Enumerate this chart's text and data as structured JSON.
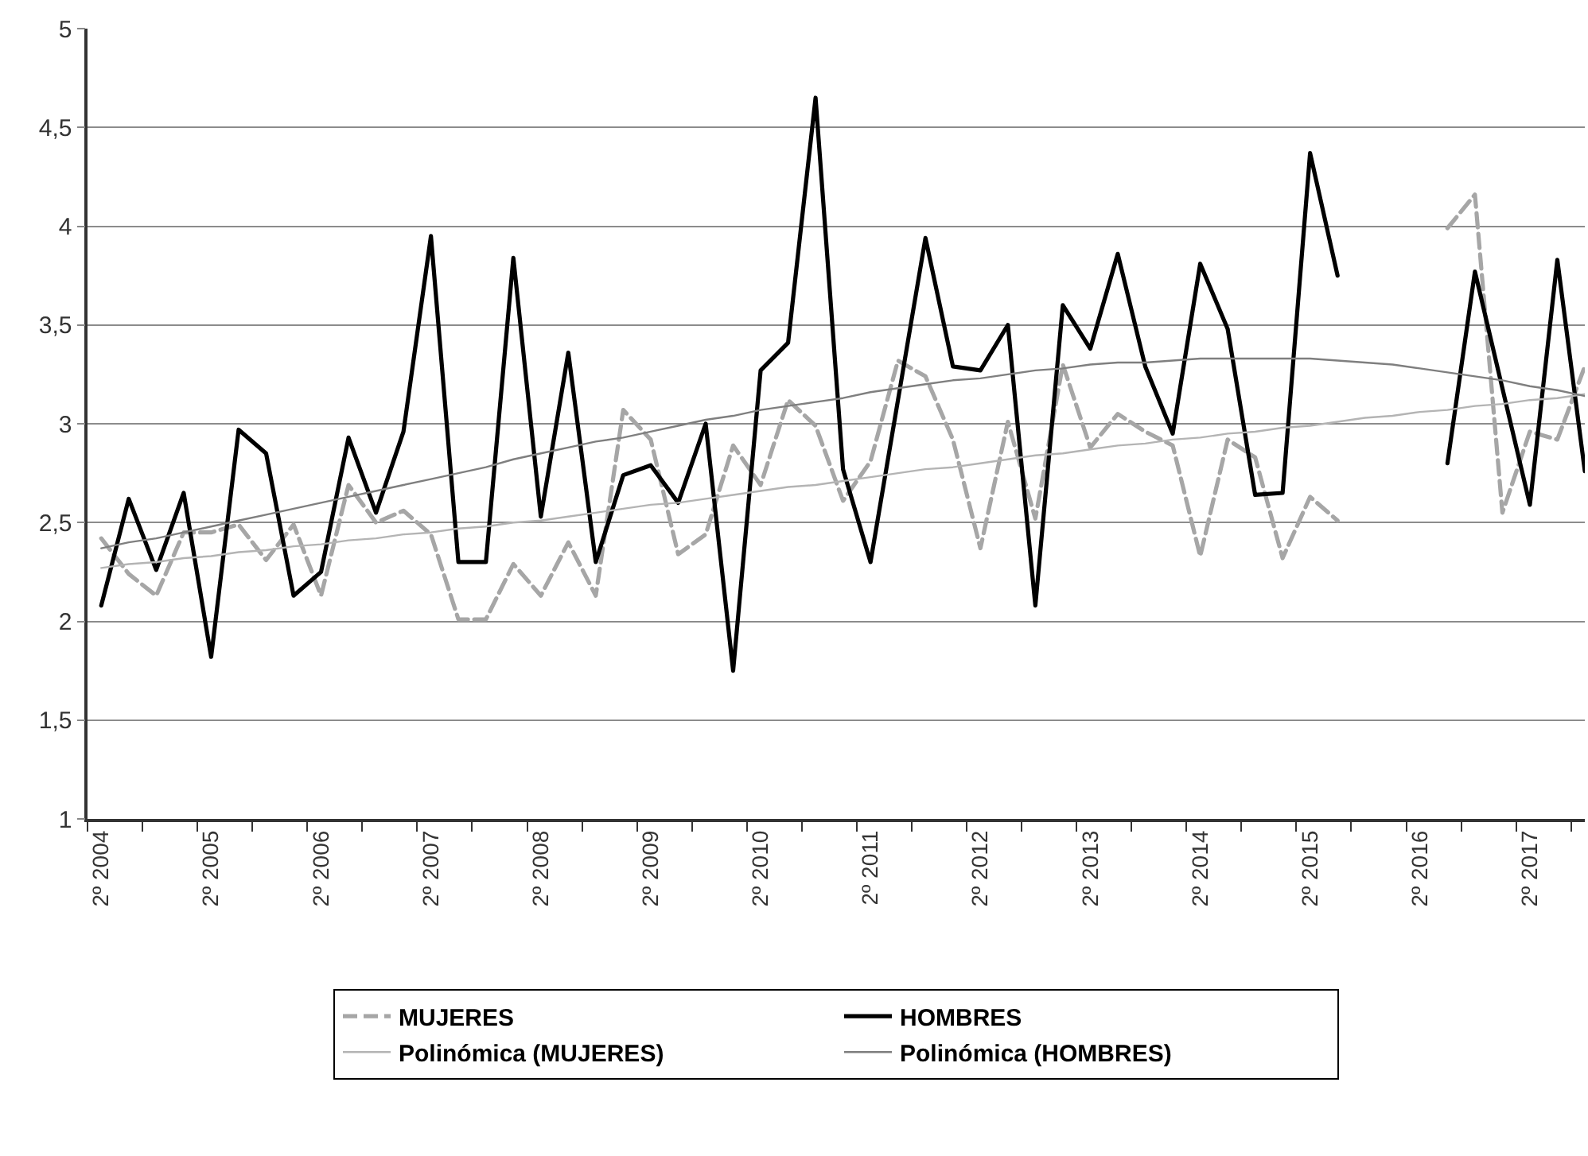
{
  "chart_data": {
    "type": "line",
    "categories": [
      "2º 2004",
      null,
      null,
      null,
      "2º 2005",
      null,
      null,
      null,
      "2º 2006",
      null,
      null,
      null,
      "2º 2007",
      null,
      null,
      null,
      "2º 2008",
      null,
      null,
      null,
      "2º 2009",
      null,
      null,
      null,
      "2º 2010",
      null,
      null,
      null,
      "2º 2011",
      null,
      null,
      null,
      "2º 2012",
      null,
      null,
      null,
      "2º 2013",
      null,
      null,
      null,
      "2º 2014",
      null,
      null,
      null,
      "2º 2015",
      null,
      null,
      null,
      "2º 2016",
      null,
      null,
      null,
      "2º 2017",
      null,
      null
    ],
    "series": [
      {
        "name": "MUJERES",
        "color": "#a6a6a6",
        "line_style": "dashed",
        "values": [
          2.42,
          2.24,
          2.13,
          2.45,
          2.45,
          2.49,
          2.31,
          2.49,
          2.13,
          2.69,
          2.5,
          2.56,
          2.44,
          2.01,
          2.01,
          2.29,
          2.13,
          2.4,
          2.13,
          3.07,
          2.92,
          2.34,
          2.44,
          2.89,
          2.69,
          3.12,
          2.99,
          2.61,
          2.81,
          3.32,
          3.24,
          2.92,
          2.37,
          3.01,
          2.52,
          3.3,
          2.88,
          3.05,
          2.96,
          2.89,
          2.33,
          2.92,
          2.83,
          2.32,
          2.63,
          2.51,
          null,
          null,
          null,
          3.99,
          4.16,
          2.55,
          2.96,
          2.92,
          3.29
        ]
      },
      {
        "name": "HOMBRES",
        "color": "#000000",
        "line_style": "solid",
        "values": [
          2.08,
          2.62,
          2.26,
          2.65,
          1.82,
          2.97,
          2.85,
          2.13,
          2.25,
          2.93,
          2.55,
          2.96,
          3.95,
          2.3,
          2.3,
          3.84,
          2.53,
          3.36,
          2.3,
          2.74,
          2.79,
          2.6,
          3.0,
          1.75,
          3.27,
          3.41,
          4.65,
          2.77,
          2.3,
          3.12,
          3.94,
          3.29,
          3.27,
          3.5,
          2.08,
          3.6,
          3.38,
          3.86,
          3.29,
          2.95,
          3.81,
          3.48,
          2.64,
          2.65,
          4.37,
          3.75,
          null,
          null,
          null,
          2.8,
          3.77,
          3.18,
          2.59,
          3.83,
          2.76
        ]
      },
      {
        "name": "Polinómica (MUJERES)",
        "color": "#b4b4b4",
        "line_style": "solid",
        "values": [
          2.27,
          2.29,
          2.3,
          2.32,
          2.33,
          2.35,
          2.36,
          2.38,
          2.39,
          2.41,
          2.42,
          2.44,
          2.45,
          2.47,
          2.48,
          2.5,
          2.51,
          2.53,
          2.55,
          2.57,
          2.59,
          2.6,
          2.62,
          2.64,
          2.66,
          2.68,
          2.69,
          2.71,
          2.73,
          2.75,
          2.77,
          2.78,
          2.8,
          2.82,
          2.84,
          2.85,
          2.87,
          2.89,
          2.9,
          2.92,
          2.93,
          2.95,
          2.96,
          2.98,
          2.99,
          3.01,
          3.03,
          3.04,
          3.06,
          3.07,
          3.09,
          3.1,
          3.12,
          3.13,
          3.15
        ]
      },
      {
        "name": "Polinómica (HOMBRES)",
        "color": "#7f7f7f",
        "line_style": "solid",
        "values": [
          2.37,
          2.4,
          2.42,
          2.45,
          2.48,
          2.51,
          2.54,
          2.57,
          2.6,
          2.63,
          2.66,
          2.69,
          2.72,
          2.75,
          2.78,
          2.82,
          2.85,
          2.88,
          2.91,
          2.93,
          2.96,
          2.99,
          3.02,
          3.04,
          3.07,
          3.09,
          3.11,
          3.13,
          3.16,
          3.18,
          3.2,
          3.22,
          3.23,
          3.25,
          3.27,
          3.28,
          3.3,
          3.31,
          3.31,
          3.32,
          3.33,
          3.33,
          3.33,
          3.33,
          3.33,
          3.32,
          3.31,
          3.3,
          3.28,
          3.26,
          3.24,
          3.22,
          3.19,
          3.17,
          3.14
        ]
      }
    ],
    "ylim": [
      1,
      5
    ],
    "yticks": [
      1,
      {
        "value": 1.5,
        "label": "1,5"
      },
      2,
      {
        "value": 2.5,
        "label": "2,5"
      },
      3,
      {
        "value": 3.5,
        "label": "3,5"
      },
      4,
      {
        "value": 4.5,
        "label": "4,5"
      },
      5
    ],
    "grid": "y",
    "legend": "bottom",
    "marker": "none"
  }
}
